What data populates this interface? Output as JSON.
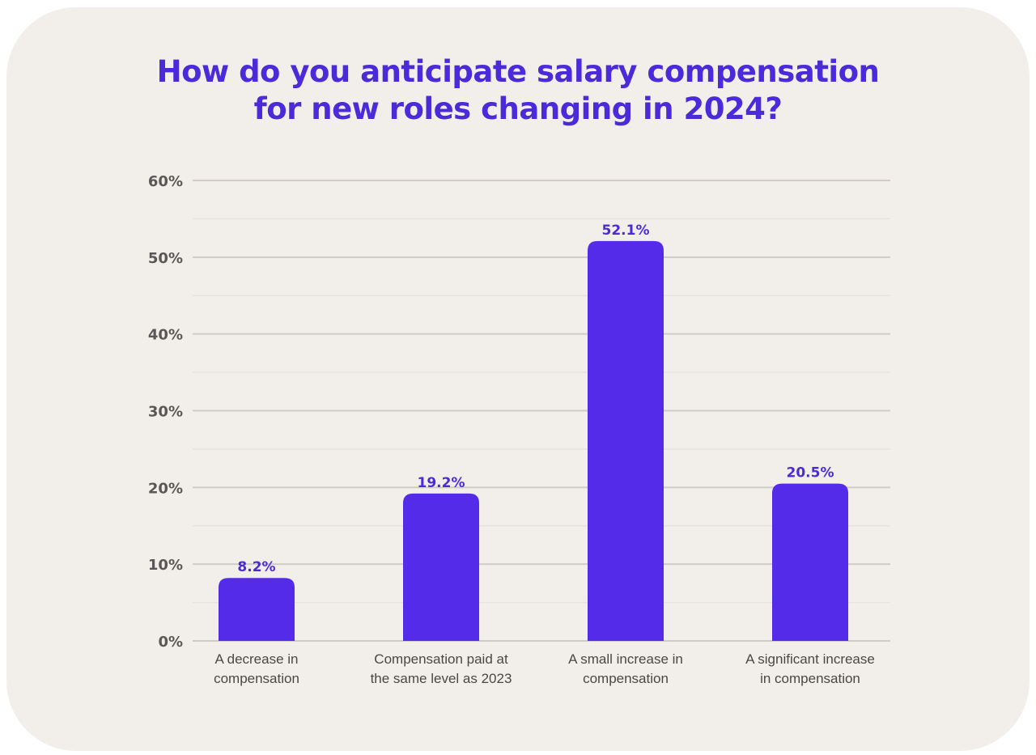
{
  "chart_data": {
    "type": "bar",
    "title_lines": [
      "How do you anticipate salary compensation",
      "for new roles changing in 2024?"
    ],
    "categories": [
      [
        "A decrease in",
        "compensation"
      ],
      [
        "Compensation paid at",
        "the same level as 2023"
      ],
      [
        "A small increase in",
        "compensation"
      ],
      [
        "A significant increase",
        "in compensation"
      ]
    ],
    "values": [
      8.2,
      19.2,
      52.1,
      20.5
    ],
    "value_labels": [
      "8.2%",
      "19.2%",
      "52.1%",
      "20.5%"
    ],
    "y_ticks": [
      0,
      10,
      20,
      30,
      40,
      50,
      60
    ],
    "y_tick_labels": [
      "0%",
      "10%",
      "20%",
      "30%",
      "40%",
      "50%",
      "60%"
    ],
    "ylim": [
      0,
      60
    ],
    "grid": true,
    "bar_color": "#532be8",
    "label_color": "#4b2bd9"
  }
}
